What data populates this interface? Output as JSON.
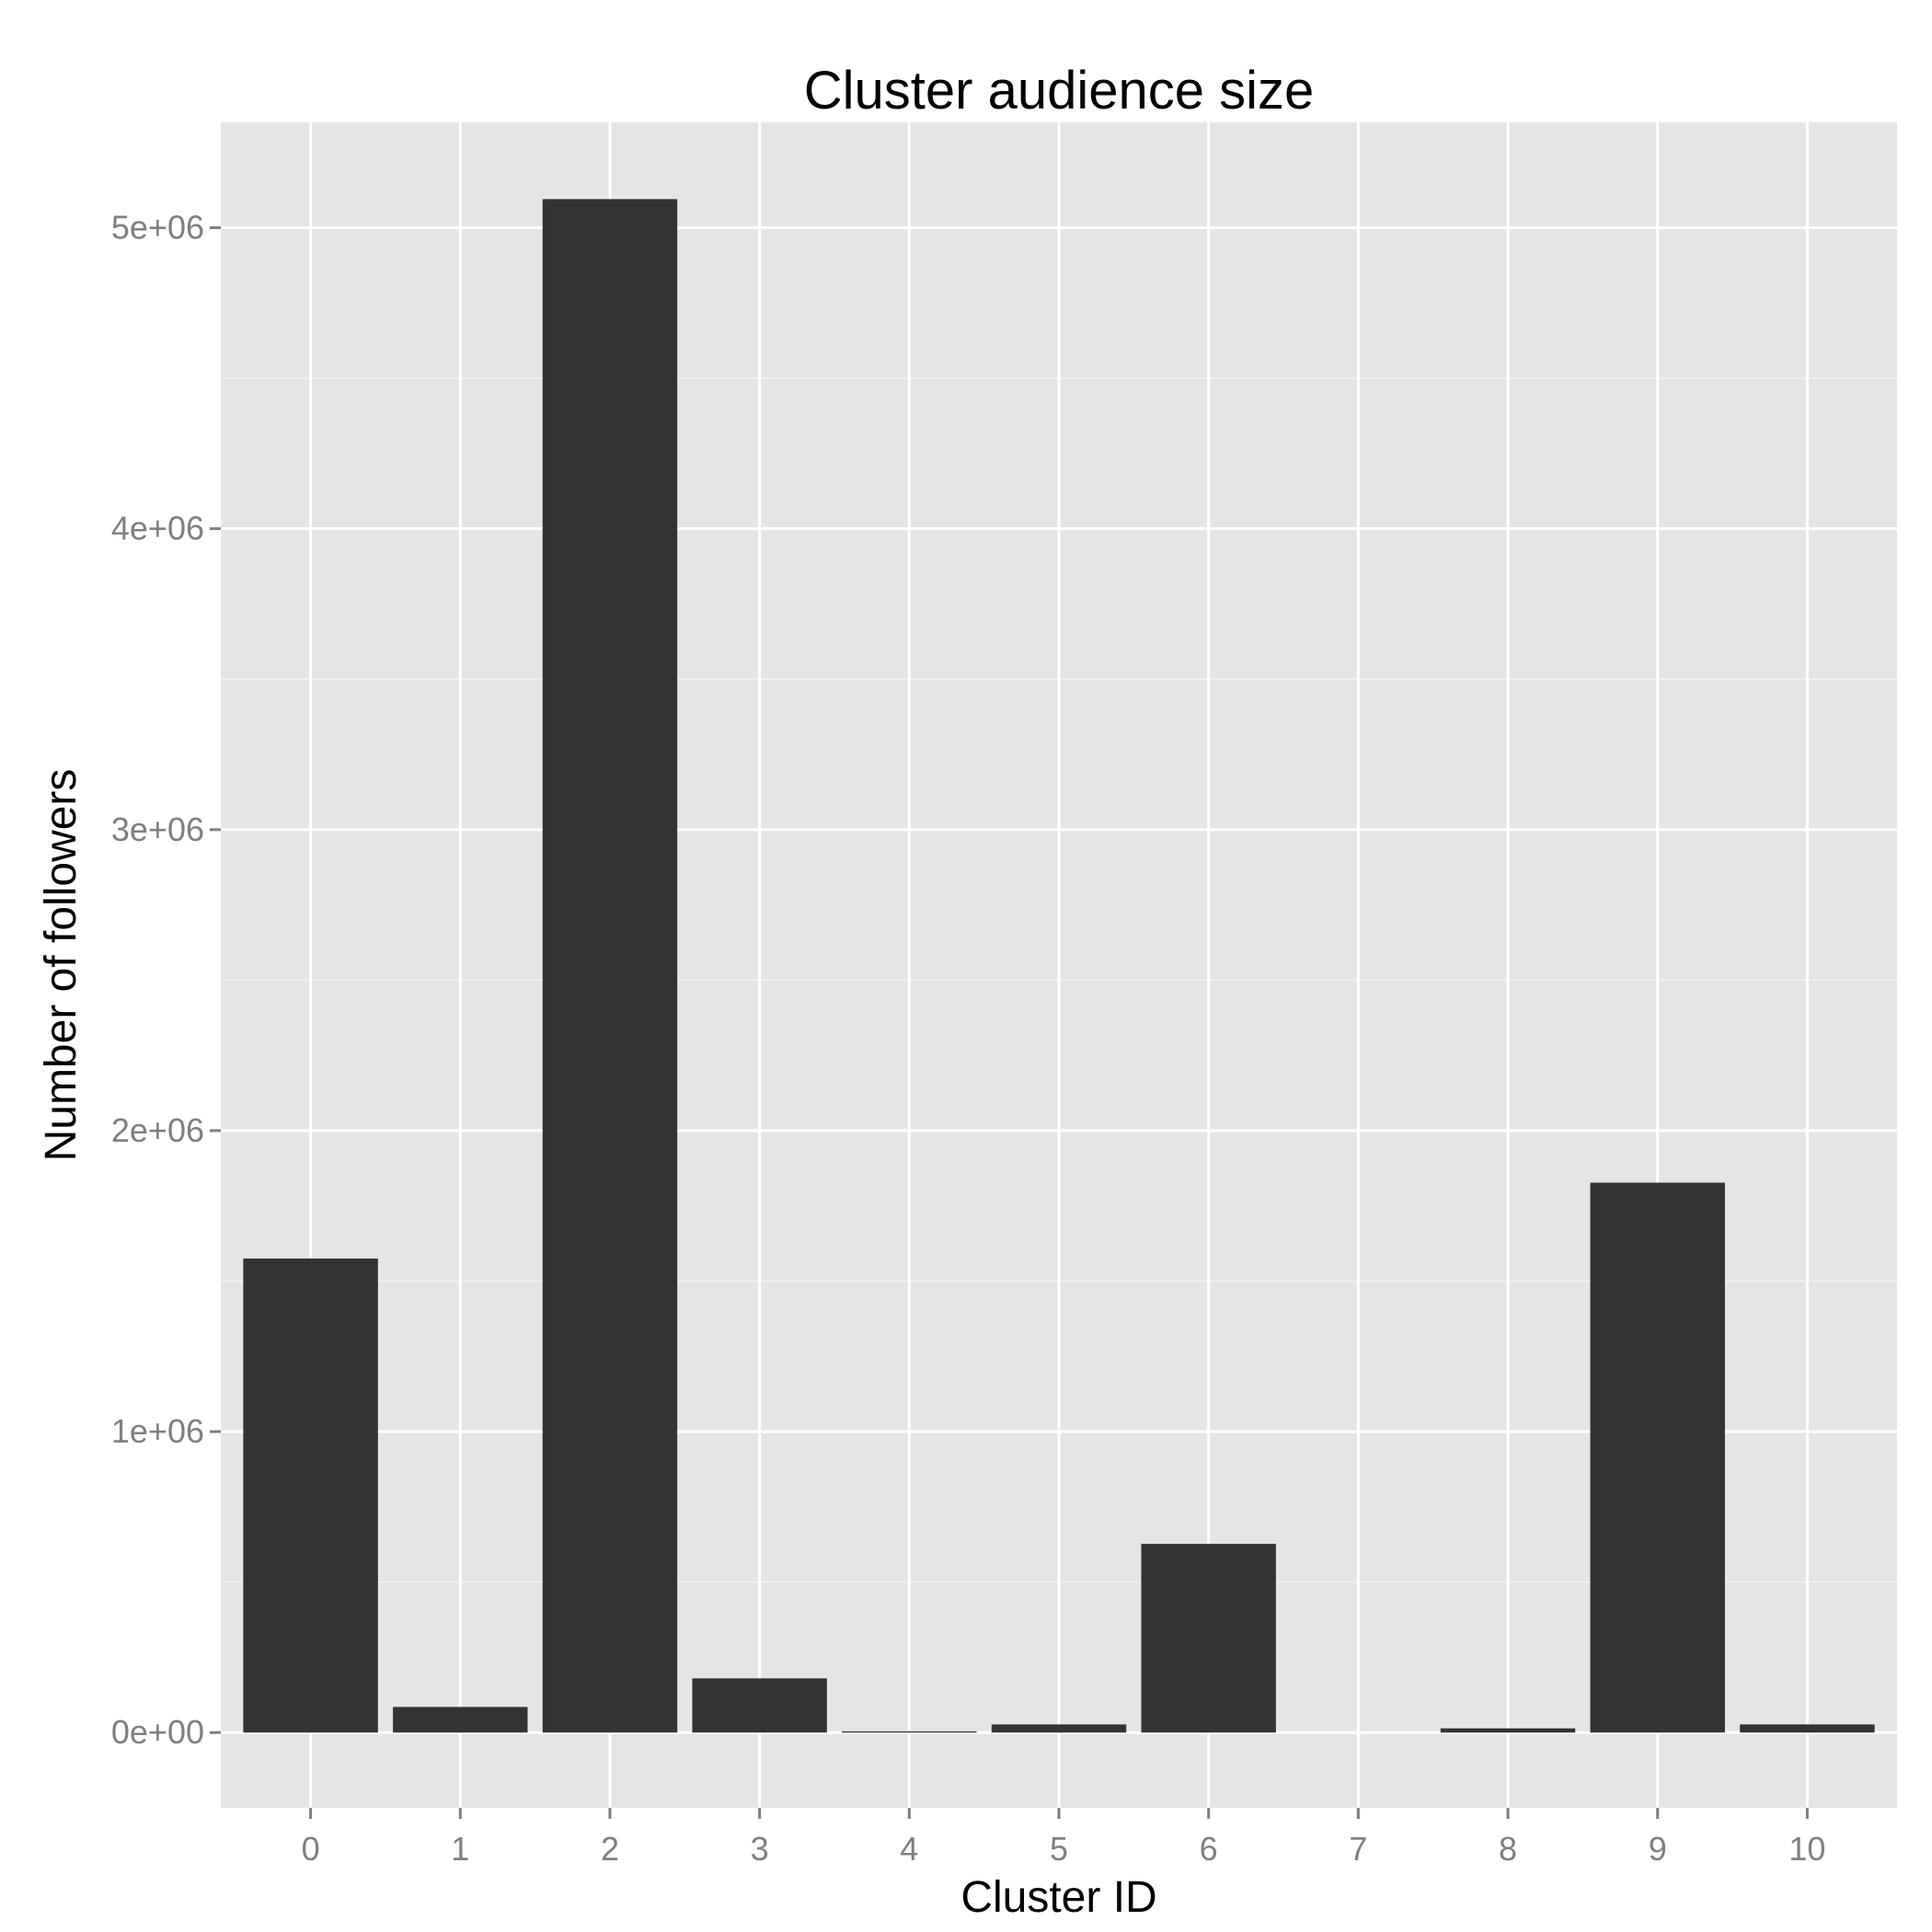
{
  "chart_data": {
    "type": "bar",
    "title": "Cluster audience size",
    "xlabel": "Cluster ID",
    "ylabel": "Number of followers",
    "categories": [
      "0",
      "1",
      "2",
      "3",
      "4",
      "5",
      "6",
      "7",
      "8",
      "9",
      "10"
    ],
    "values": [
      1575000,
      85000,
      5095000,
      180000,
      4000,
      27000,
      627000,
      0,
      14000,
      1827000,
      27000
    ],
    "ylim": [
      -250000,
      5350000
    ],
    "yticks": [
      0,
      1000000,
      2000000,
      3000000,
      4000000,
      5000000
    ],
    "ytick_labels": [
      "0e+00",
      "1e+06",
      "2e+06",
      "3e+06",
      "4e+06",
      "5e+06"
    ],
    "grid": true,
    "legend": "none",
    "colors": {
      "panel_background": "#e5e5e5",
      "grid_major": "#ffffff",
      "grid_minor": "#f2f2f2",
      "bar_fill": "#333333",
      "tick_text": "#7f7f7f",
      "tick_mark": "#7f7f7f"
    }
  }
}
